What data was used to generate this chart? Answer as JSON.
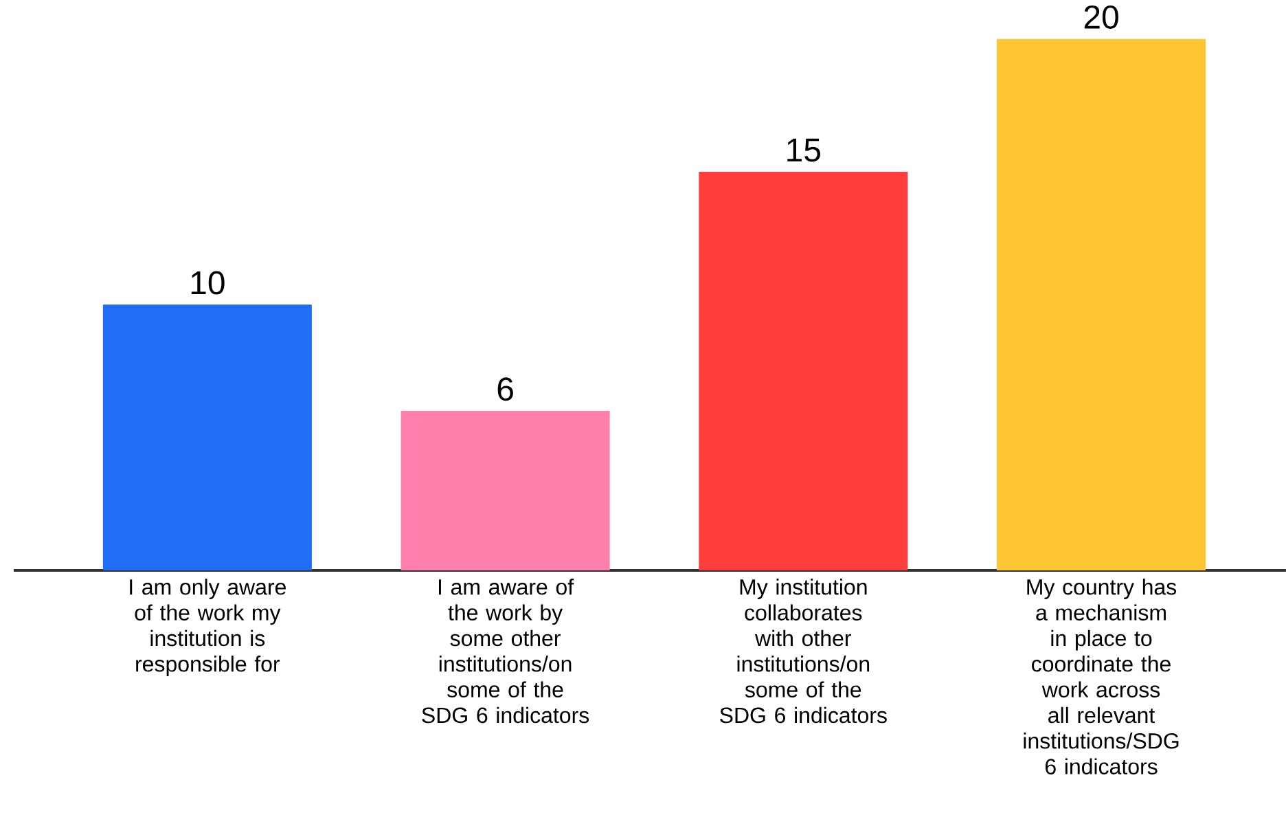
{
  "chart_data": {
    "type": "bar",
    "categories": [
      "I am only aware of the work my institution is responsible for",
      "I am aware of the work by some other institutions/on some of the SDG 6 indicators",
      "My institution collaborates with other institutions/on some of the SDG 6 indicators",
      "My country has a mechanism in place to coordinate the work across all relevant institutions/SDG 6 indicators"
    ],
    "values": [
      10,
      6,
      15,
      20
    ],
    "colors": [
      "#1f6ef5",
      "#ff7eab",
      "#ff3d3d",
      "#ffc533"
    ],
    "data_labels": true
  }
}
